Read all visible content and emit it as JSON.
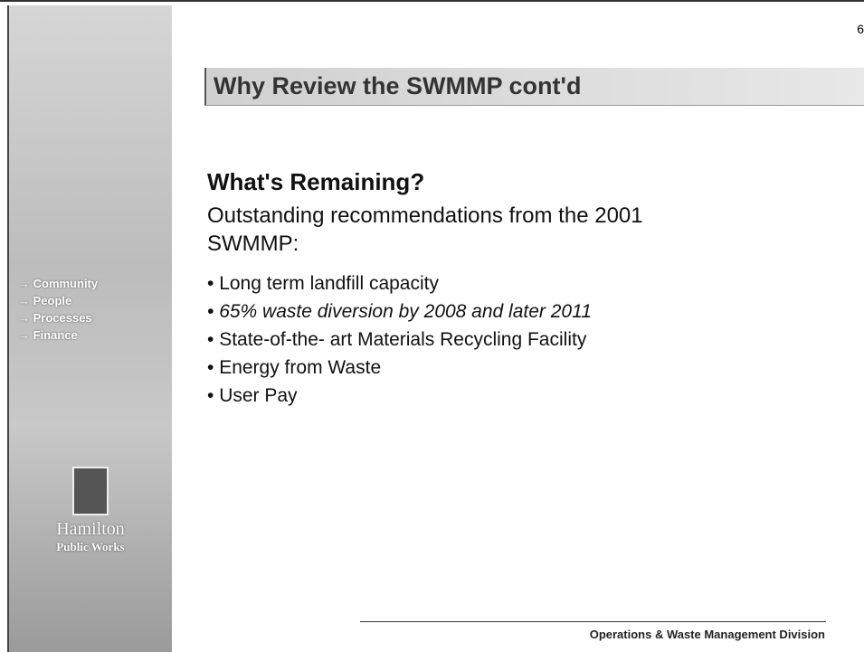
{
  "page_number": "6",
  "title": "Why Review the SWMMP  cont'd",
  "heading": "What's Remaining?",
  "intro": [
    "Outstanding recommendations from the 2001",
    "SWMMP:"
  ],
  "bullets": [
    "Long term landfill capacity",
    "65% waste diversion by 2008 and later 2011",
    "State-of-the- art Materials Recycling Facility",
    "Energy from Waste",
    "User Pay"
  ],
  "sidebar": {
    "menu": [
      "→ Community",
      "→ People",
      "→ Processes",
      "→ Finance"
    ],
    "logo_name": "Hamilton",
    "logo_sub": "Public Works"
  },
  "footer": "Operations & Waste Management Division"
}
